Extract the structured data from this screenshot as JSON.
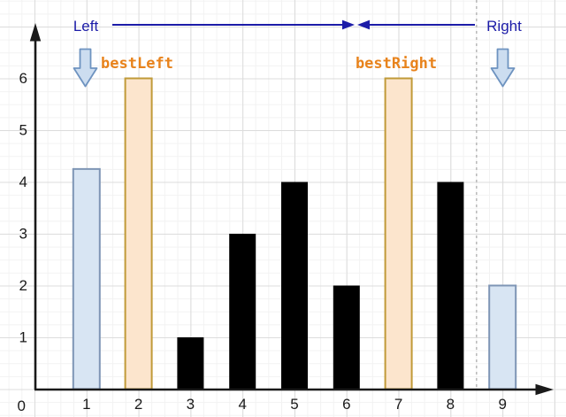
{
  "chart_data": {
    "type": "bar",
    "categories": [
      "1",
      "2",
      "3",
      "4",
      "5",
      "6",
      "7",
      "8",
      "9"
    ],
    "values": [
      4.25,
      6,
      1,
      3,
      4,
      2,
      6,
      4,
      2
    ],
    "bar_styles": [
      "blue",
      "orange",
      "black",
      "black",
      "black",
      "black",
      "orange",
      "black",
      "blue"
    ],
    "title": "",
    "xlabel": "",
    "ylabel": "",
    "y_ticks": [
      1,
      2,
      3,
      4,
      5,
      6
    ],
    "origin_label": "0",
    "xlim": [
      0,
      10.2
    ],
    "ylim": [
      0,
      7.1
    ],
    "grid": "on",
    "divider_x": 8.5,
    "annotations": [
      {
        "text": "Left",
        "x": 1,
        "role": "left-pointer-label"
      },
      {
        "text": "Right",
        "x": 9,
        "role": "right-pointer-label"
      },
      {
        "text": "bestLeft",
        "x": 2,
        "role": "best-left-label"
      },
      {
        "text": "bestRight",
        "x": 7,
        "role": "best-right-label"
      }
    ],
    "legend": "none"
  },
  "colors": {
    "grid_minor": "#f2f2f2",
    "grid_major": "#dcdcdc",
    "axis": "#1a1a1a",
    "tick_text": "#1a1a1a",
    "range_arrow": "#1c1ca8",
    "best_text": "#e8831c",
    "divider": "#bcbcbc",
    "bar_black": "#000000",
    "bar_blue_fill": "#d8e5f3",
    "bar_blue_stroke": "#7e95b5",
    "bar_orange_fill": "#fce5cd",
    "bar_orange_stroke": "#c09a38",
    "down_arrow_fill": "#ccddf0",
    "down_arrow_stroke": "#6e93c0"
  }
}
